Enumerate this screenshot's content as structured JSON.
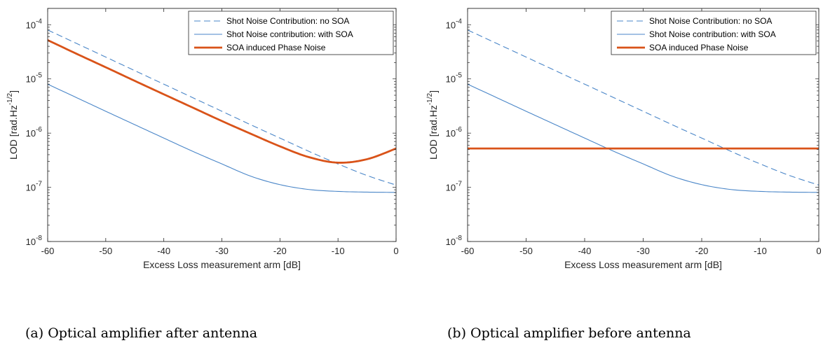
{
  "chart_data": [
    {
      "type": "line",
      "caption": "(a)  Optical amplifier after antenna",
      "xlabel": "Excess Loss measurement arm [dB]",
      "ylabel": {
        "base": "LOD [rad.Hz",
        "sup": "-1/2",
        "close": "]"
      },
      "xlim": [
        -60,
        0
      ],
      "ylim": [
        1e-08,
        0.0002
      ],
      "yscale": "log",
      "xticks": [
        "-60",
        "-50",
        "-40",
        "-30",
        "-20",
        "-10",
        "0"
      ],
      "yticks": [
        {
          "base": "10",
          "exp": "-8"
        },
        {
          "base": "10",
          "exp": "-7"
        },
        {
          "base": "10",
          "exp": "-6"
        },
        {
          "base": "10",
          "exp": "-5"
        },
        {
          "base": "10",
          "exp": "-4"
        }
      ],
      "grid": false,
      "legend_position": "top-right",
      "series": [
        {
          "name": "Shot Noise Contribution: no SOA",
          "style": "dashed",
          "color": "#4a86c8",
          "x": [
            -60,
            -55,
            -50,
            -45,
            -40,
            -35,
            -30,
            -25,
            -20,
            -15,
            -10,
            -5,
            0
          ],
          "y": [
            8e-05,
            4.5e-05,
            2.53e-05,
            1.42e-05,
            8e-06,
            4.5e-06,
            2.53e-06,
            1.42e-06,
            8.1e-07,
            4.6e-07,
            2.7e-07,
            1.65e-07,
            1.1e-07
          ]
        },
        {
          "name": "Shot Noise contribution: with SOA",
          "style": "solid-thin",
          "color": "#4a86c8",
          "x": [
            -60,
            -55,
            -50,
            -45,
            -40,
            -35,
            -30,
            -25,
            -20,
            -15,
            -10,
            -5,
            0
          ],
          "y": [
            8e-06,
            4.5e-06,
            2.53e-06,
            1.43e-06,
            8.1e-07,
            4.6e-07,
            2.7e-07,
            1.6e-07,
            1.12e-07,
            9.1e-08,
            8.4e-08,
            8.15e-08,
            8.05e-08
          ]
        },
        {
          "name": "SOA induced Phase Noise",
          "style": "solid-thick",
          "color": "#d95319",
          "x": [
            -60,
            -55,
            -50,
            -45,
            -40,
            -35,
            -30,
            -25,
            -20,
            -15,
            -10,
            -5,
            0
          ],
          "y": [
            5.2e-05,
            2.9e-05,
            1.64e-05,
            9.2e-06,
            5.2e-06,
            2.95e-06,
            1.67e-06,
            9.7e-07,
            5.7e-07,
            3.6e-07,
            2.85e-07,
            3.3e-07,
            5.2e-07
          ]
        }
      ]
    },
    {
      "type": "line",
      "caption": "(b)  Optical amplifier before antenna",
      "xlabel": "Excess Loss measurement arm [dB]",
      "ylabel": {
        "base": "LOD [rad.Hz",
        "sup": "-1/2",
        "close": "]"
      },
      "xlim": [
        -60,
        0
      ],
      "ylim": [
        1e-08,
        0.0002
      ],
      "yscale": "log",
      "xticks": [
        "-60",
        "-50",
        "-40",
        "-30",
        "-20",
        "-10",
        "0"
      ],
      "yticks": [
        {
          "base": "10",
          "exp": "-8"
        },
        {
          "base": "10",
          "exp": "-7"
        },
        {
          "base": "10",
          "exp": "-6"
        },
        {
          "base": "10",
          "exp": "-5"
        },
        {
          "base": "10",
          "exp": "-4"
        }
      ],
      "grid": false,
      "legend_position": "top-right",
      "series": [
        {
          "name": "Shot Noise Contribution: no SOA",
          "style": "dashed",
          "color": "#4a86c8",
          "x": [
            -60,
            -55,
            -50,
            -45,
            -40,
            -35,
            -30,
            -25,
            -20,
            -15,
            -10,
            -5,
            0
          ],
          "y": [
            8e-05,
            4.5e-05,
            2.53e-05,
            1.42e-05,
            8e-06,
            4.5e-06,
            2.53e-06,
            1.42e-06,
            8.1e-07,
            4.6e-07,
            2.7e-07,
            1.65e-07,
            1.1e-07
          ]
        },
        {
          "name": "Shot Noise contribution: with SOA",
          "style": "solid-thin",
          "color": "#4a86c8",
          "x": [
            -60,
            -55,
            -50,
            -45,
            -40,
            -35,
            -30,
            -25,
            -20,
            -15,
            -10,
            -5,
            0
          ],
          "y": [
            8e-06,
            4.5e-06,
            2.53e-06,
            1.43e-06,
            8.1e-07,
            4.6e-07,
            2.7e-07,
            1.6e-07,
            1.12e-07,
            9.1e-08,
            8.4e-08,
            8.15e-08,
            8.05e-08
          ]
        },
        {
          "name": "SOA induced Phase Noise",
          "style": "solid-thick",
          "color": "#d95319",
          "x": [
            -60,
            0
          ],
          "y": [
            5.2e-07,
            5.2e-07
          ]
        }
      ]
    }
  ]
}
